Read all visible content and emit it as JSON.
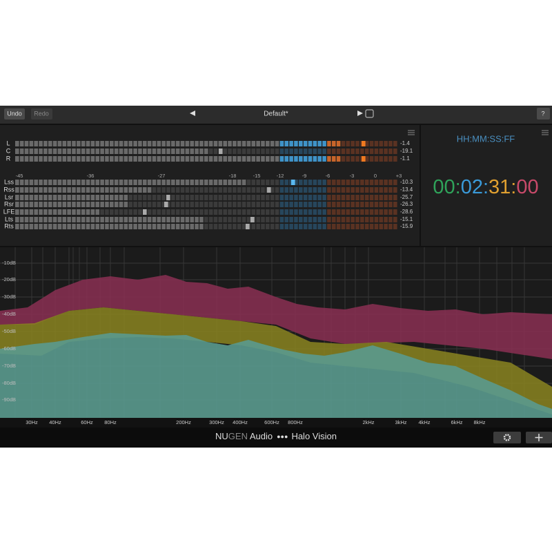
{
  "toolbar": {
    "undo": "Undo",
    "redo": "Redo",
    "preset": "Default*",
    "help": "?"
  },
  "main_meters": {
    "channels": [
      {
        "label": "L",
        "readout": "-1.4"
      },
      {
        "label": "C",
        "readout": "-19.1"
      },
      {
        "label": "R",
        "readout": "-1.1"
      }
    ]
  },
  "scale": [
    "-45",
    "-36",
    "-27",
    "-18",
    "-15",
    "-12",
    "-9",
    "-6",
    "-3",
    "0",
    "+3"
  ],
  "surround_meters": {
    "channels": [
      {
        "label": "Lss",
        "readout": "-10.3"
      },
      {
        "label": "Rss",
        "readout": "-13.4"
      },
      {
        "label": "Lsr",
        "readout": "-25.7"
      },
      {
        "label": "Rsr",
        "readout": "-26.3"
      },
      {
        "label": "LFE",
        "readout": "-28.6"
      },
      {
        "label": "Lts",
        "readout": "-15.1"
      },
      {
        "label": "Rts",
        "readout": "-15.9"
      }
    ]
  },
  "timecode": {
    "format": "HH:MM:SS:FF",
    "parts": [
      "00",
      ":",
      "02",
      ":",
      "31",
      ":",
      "00"
    ]
  },
  "spectrum": {
    "db_labels": [
      "-10dB",
      "-20dB",
      "-30dB",
      "-40dB",
      "-50dB",
      "-60dB",
      "-70dB",
      "-80dB",
      "-90dB"
    ],
    "freq_labels": [
      "30Hz",
      "40Hz",
      "60Hz",
      "80Hz",
      "200Hz",
      "300Hz",
      "400Hz",
      "600Hz",
      "800Hz",
      "2kHz",
      "3kHz",
      "4kHz",
      "6kHz",
      "8kHz"
    ]
  },
  "footer": {
    "brand_a": "NU",
    "brand_b": "GEN",
    "brand_c": " Audio",
    "product": "Halo Vision"
  }
}
